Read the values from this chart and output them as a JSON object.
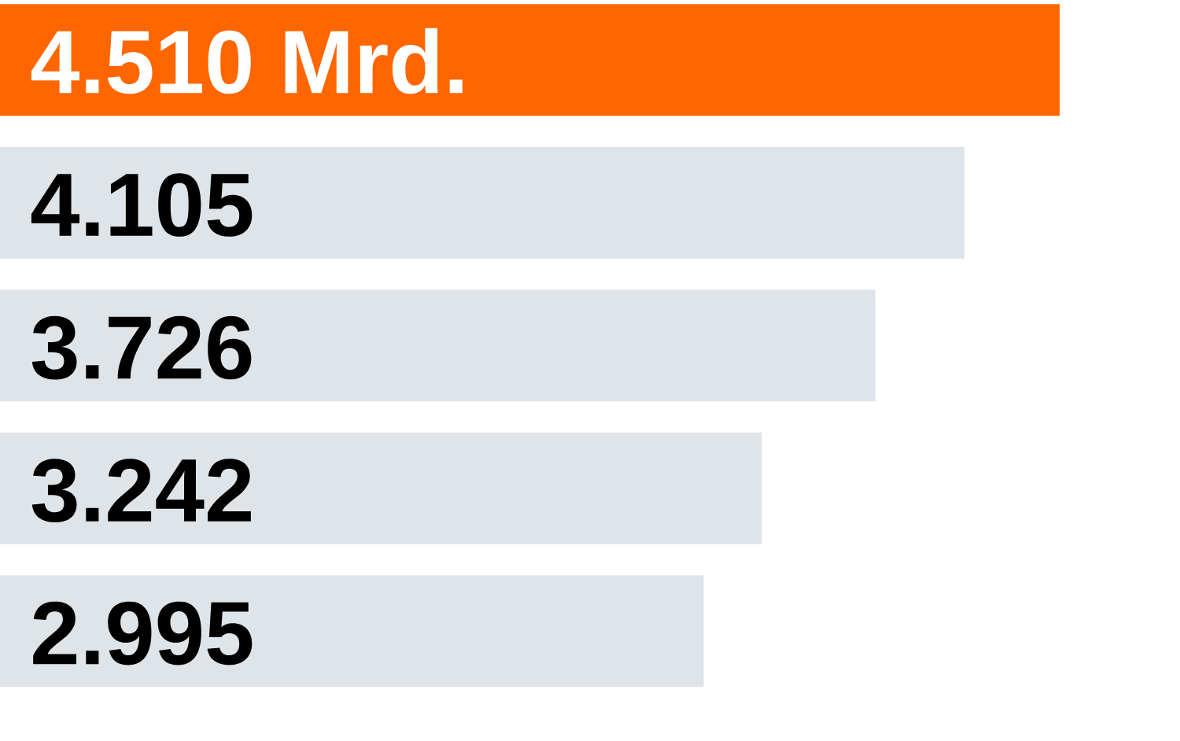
{
  "chart_data": {
    "type": "bar",
    "orientation": "horizontal",
    "categories": [
      null,
      null,
      null,
      null,
      null
    ],
    "values": [
      4510,
      4105,
      3726,
      3242,
      2995
    ],
    "value_labels": [
      "4.510 Mrd.",
      "4.105",
      "3.726",
      "3.242",
      "2.995"
    ],
    "colors": [
      "#ff6600",
      "#dfe4e8",
      "#dfe4e8",
      "#dfe4e8",
      "#dfe4e8"
    ]
  }
}
